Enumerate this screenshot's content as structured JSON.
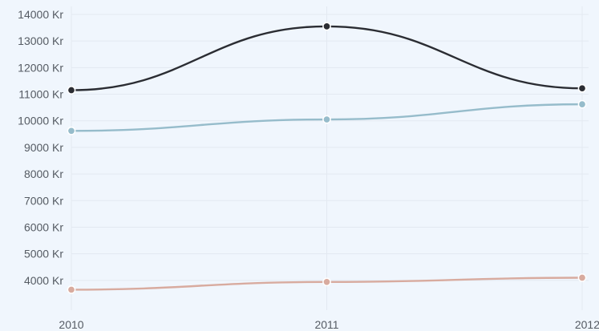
{
  "chart_data": {
    "type": "line",
    "x": [
      "2010",
      "2011",
      "2012"
    ],
    "y_ticks": [
      "4000 Kr",
      "5000 Kr",
      "6000 Kr",
      "7000 Kr",
      "8000 Kr",
      "9000 Kr",
      "10000 Kr",
      "11000 Kr",
      "12000 Kr",
      "13000 Kr",
      "14000 Kr"
    ],
    "y_tick_values": [
      4000,
      5000,
      6000,
      7000,
      8000,
      9000,
      10000,
      11000,
      12000,
      13000,
      14000
    ],
    "ylim": [
      3000,
      14300
    ],
    "grid": true,
    "legend": false,
    "smooth": true,
    "series": [
      {
        "color": "#2b2d33",
        "values": [
          11150,
          13550,
          11220
        ]
      },
      {
        "color": "#96bccb",
        "values": [
          9620,
          10050,
          10620
        ]
      },
      {
        "color": "#d8ab9f",
        "values": [
          3650,
          3940,
          4100
        ]
      }
    ]
  }
}
